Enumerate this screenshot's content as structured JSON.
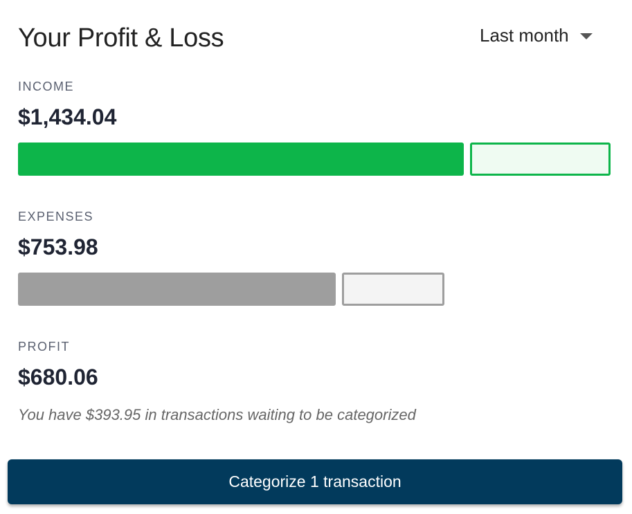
{
  "header": {
    "title": "Your Profit & Loss",
    "period": "Last month"
  },
  "income": {
    "label": "INCOME",
    "amount": "$1,434.04",
    "bar_filled_fraction": 0.76,
    "bar_scale": 1.0,
    "color": "#0db54a",
    "rest_color": "#effbf2"
  },
  "expenses": {
    "label": "EXPENSES",
    "amount": "$753.98",
    "bar_filled_fraction": 0.755,
    "bar_scale": 0.72,
    "color": "#9e9e9e",
    "rest_color": "#f4f4f4"
  },
  "profit": {
    "label": "PROFIT",
    "amount": "$680.06"
  },
  "note": "You have $393.95 in transactions waiting to be categorized",
  "cta": {
    "label": "Categorize 1 transaction",
    "color": "#023a5c"
  }
}
